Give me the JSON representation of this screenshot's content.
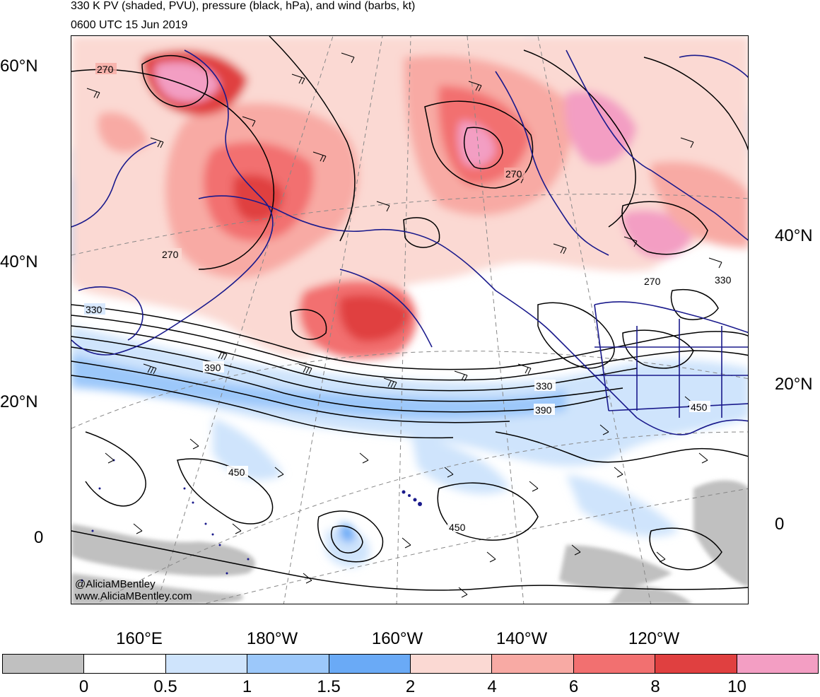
{
  "title": {
    "line1": "330 K PV (shaded, PVU), pressure (black, hPa), and wind (barbs, kt)",
    "line2": "0600 UTC 15 Jun 2019"
  },
  "credit": {
    "handle": "@AliciaMBentley",
    "website": "www.AliciaMBentley.com"
  },
  "map": {
    "lat_labels_left": [
      "60°N",
      "40°N",
      "20°N",
      "0"
    ],
    "lat_labels_right": [
      "40°N",
      "20°N",
      "0"
    ],
    "lon_labels": [
      "160°E",
      "180°W",
      "160°W",
      "140°W",
      "120°W"
    ],
    "contour_labels": [
      "270",
      "270",
      "270",
      "270",
      "330",
      "390",
      "330",
      "390",
      "450",
      "450",
      "450",
      "330"
    ]
  },
  "colorbar": {
    "colors": [
      "#c0c0c0",
      "#ffffff",
      "#cfe4fc",
      "#9cc8fa",
      "#6aaaf6",
      "#fbd9d3",
      "#f8aaa4",
      "#f27070",
      "#e04040",
      "#f39ec3"
    ],
    "labels": [
      "0",
      "0.5",
      "1",
      "1.5",
      "2",
      "4",
      "6",
      "8",
      "10"
    ]
  }
}
